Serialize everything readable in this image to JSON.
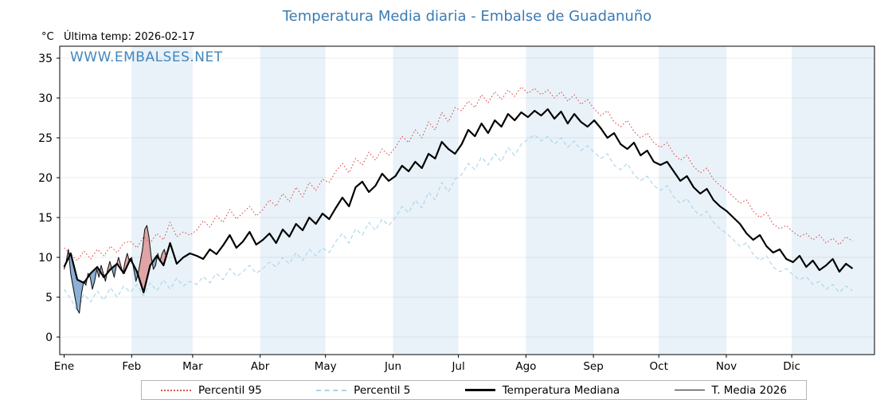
{
  "chart_data": {
    "type": "line",
    "title": "Temperatura Media diaria - Embalse de Guadanuño",
    "unit_label": "°C",
    "annotation": "Última temp: 2026-02-17",
    "watermark": "WWW.EMBALSES.NET",
    "x_tick_labels": [
      "Ene",
      "Feb",
      "Mar",
      "Abr",
      "May",
      "Jun",
      "Jul",
      "Ago",
      "Sep",
      "Oct",
      "Nov",
      "Dic"
    ],
    "month_start_days": [
      0,
      31,
      59,
      90,
      120,
      151,
      181,
      212,
      243,
      273,
      304,
      334
    ],
    "days_in_year": 365,
    "xlim": [
      -2,
      372
    ],
    "ylim": [
      -2.2,
      36.5
    ],
    "yticks": [
      0,
      5,
      10,
      15,
      20,
      25,
      30,
      35
    ],
    "grid": true,
    "band_color": "#e9f2f9",
    "title_color": "#3b7bb3",
    "watermark_color": "#4286c0",
    "fill_above_color": "#dc7a7a",
    "fill_below_color": "#4f86c0",
    "legend": [
      "Percentil 95",
      "Percentil 5",
      "Temperatura Mediana",
      "T. Media 2026"
    ],
    "legend_position": "bottom",
    "series": [
      {
        "name": "Percentil 95",
        "color": "#e0504e",
        "style": "dotted",
        "width": 1.1,
        "x_step_days": 3.0417,
        "values": [
          11.2,
          10.4,
          9.6,
          10.8,
          9.8,
          11.0,
          10.2,
          11.4,
          10.6,
          11.8,
          12.0,
          11.2,
          12.6,
          11.8,
          13.0,
          12.2,
          14.4,
          12.6,
          13.2,
          12.8,
          13.4,
          14.6,
          13.8,
          15.2,
          14.4,
          16.0,
          14.8,
          15.6,
          16.4,
          15.2,
          16.0,
          17.2,
          16.4,
          18.0,
          17.0,
          18.8,
          17.6,
          19.4,
          18.4,
          19.8,
          19.4,
          20.8,
          21.8,
          20.6,
          22.4,
          21.6,
          23.2,
          22.2,
          23.6,
          22.8,
          23.8,
          25.2,
          24.4,
          26.0,
          25.0,
          27.0,
          26.0,
          28.2,
          27.0,
          28.8,
          28.4,
          29.6,
          28.8,
          30.4,
          29.4,
          30.8,
          29.8,
          31.0,
          30.2,
          31.4,
          30.6,
          31.2,
          30.4,
          31.0,
          30.0,
          30.8,
          29.6,
          30.4,
          29.2,
          29.8,
          28.6,
          27.8,
          28.4,
          27.0,
          26.4,
          27.2,
          25.8,
          25.0,
          25.6,
          24.4,
          23.8,
          24.4,
          23.0,
          22.2,
          22.8,
          21.4,
          20.6,
          21.2,
          19.8,
          19.0,
          18.4,
          17.6,
          16.8,
          17.2,
          15.8,
          15.0,
          15.6,
          14.2,
          13.6,
          14.0,
          13.2,
          12.6,
          13.0,
          12.2,
          12.8,
          11.8,
          12.4,
          11.6,
          12.6,
          12.0
        ]
      },
      {
        "name": "Percentil 5",
        "color": "#a8d5e8",
        "style": "dashed",
        "width": 1.1,
        "x_step_days": 3.0417,
        "values": [
          6.0,
          4.8,
          3.2,
          5.4,
          4.4,
          5.8,
          4.6,
          6.2,
          5.0,
          6.4,
          5.6,
          6.6,
          5.2,
          6.8,
          5.8,
          7.2,
          6.0,
          7.4,
          6.4,
          7.0,
          6.6,
          7.6,
          6.8,
          8.0,
          7.2,
          8.6,
          7.6,
          8.2,
          9.0,
          8.0,
          8.6,
          9.4,
          8.8,
          10.0,
          9.2,
          10.6,
          9.6,
          11.0,
          10.2,
          11.2,
          10.6,
          12.0,
          13.0,
          11.8,
          13.6,
          12.8,
          14.4,
          13.4,
          14.8,
          14.0,
          15.0,
          16.4,
          15.6,
          17.2,
          16.2,
          18.2,
          17.2,
          19.4,
          18.2,
          19.8,
          20.4,
          21.8,
          21.0,
          22.6,
          21.6,
          23.0,
          22.0,
          23.8,
          22.8,
          24.2,
          24.8,
          25.4,
          24.6,
          25.2,
          24.2,
          25.0,
          23.8,
          24.6,
          23.4,
          24.0,
          23.2,
          22.4,
          23.0,
          21.6,
          21.0,
          21.8,
          20.4,
          19.6,
          20.2,
          19.0,
          18.4,
          19.0,
          17.6,
          16.8,
          17.4,
          16.0,
          15.2,
          15.8,
          14.4,
          13.6,
          13.0,
          12.2,
          11.4,
          11.8,
          10.4,
          9.6,
          10.2,
          8.8,
          8.2,
          8.6,
          7.8,
          7.2,
          7.6,
          6.6,
          7.0,
          6.0,
          6.6,
          5.6,
          6.4,
          5.8
        ]
      },
      {
        "name": "Temperatura Mediana",
        "color": "#000000",
        "style": "solid",
        "width": 2.2,
        "x_step_days": 3.0417,
        "values": [
          8.8,
          10.5,
          7.2,
          6.8,
          8.0,
          8.8,
          7.5,
          8.5,
          9.2,
          8.0,
          9.8,
          8.2,
          5.6,
          9.0,
          10.2,
          9.0,
          11.8,
          9.2,
          10.0,
          10.5,
          10.2,
          9.8,
          11.0,
          10.4,
          11.5,
          12.8,
          11.2,
          12.0,
          13.2,
          11.6,
          12.2,
          13.0,
          11.8,
          13.5,
          12.6,
          14.2,
          13.4,
          15.0,
          14.2,
          15.5,
          14.8,
          16.2,
          17.5,
          16.4,
          18.8,
          19.5,
          18.2,
          19.0,
          20.5,
          19.6,
          20.2,
          21.5,
          20.8,
          22.0,
          21.2,
          23.0,
          22.4,
          24.5,
          23.6,
          23.0,
          24.2,
          26.0,
          25.2,
          26.8,
          25.6,
          27.2,
          26.4,
          28.0,
          27.2,
          28.2,
          27.6,
          28.4,
          27.8,
          28.6,
          27.4,
          28.3,
          26.8,
          28.0,
          27.0,
          26.4,
          27.2,
          26.2,
          25.0,
          25.6,
          24.2,
          23.6,
          24.4,
          22.8,
          23.4,
          22.0,
          21.6,
          22.0,
          20.8,
          19.6,
          20.2,
          18.8,
          18.0,
          18.6,
          17.2,
          16.4,
          15.8,
          15.0,
          14.2,
          13.0,
          12.2,
          12.8,
          11.4,
          10.6,
          11.0,
          9.8,
          9.4,
          10.2,
          8.8,
          9.6,
          8.4,
          9.0,
          9.8,
          8.2,
          9.2,
          8.6
        ]
      },
      {
        "name": "T. Media 2026",
        "color": "#1a1a1a",
        "style": "solid",
        "width": 1.1,
        "x_step_days": 1,
        "values": [
          8.5,
          9.5,
          11.0,
          8.0,
          6.5,
          5.0,
          3.5,
          3.0,
          5.5,
          7.0,
          6.5,
          8.0,
          7.5,
          6.0,
          7.0,
          8.5,
          7.5,
          9.0,
          8.0,
          7.0,
          8.5,
          9.5,
          8.5,
          7.5,
          9.0,
          10.0,
          9.0,
          8.0,
          9.5,
          10.5,
          9.5,
          10.0,
          8.5,
          7.0,
          8.0,
          9.5,
          11.0,
          13.5,
          14.0,
          12.5,
          10.0,
          8.5,
          9.0,
          10.5,
          9.5,
          10.5,
          11.0,
          10.0
        ]
      }
    ]
  }
}
